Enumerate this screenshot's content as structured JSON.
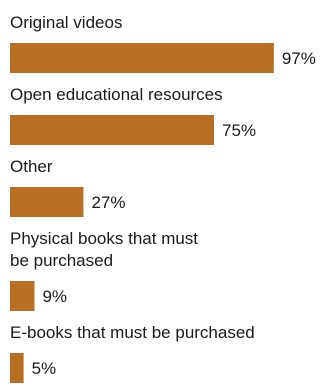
{
  "chart_data": {
    "type": "bar",
    "orientation": "horizontal",
    "categories": [
      [
        "Original videos"
      ],
      [
        "Open educational resources"
      ],
      [
        "Other"
      ],
      [
        "Physical books that must",
        "be purchased"
      ],
      [
        "E-books that must be purchased"
      ]
    ],
    "values": [
      97,
      75,
      27,
      9,
      5
    ],
    "value_labels": [
      "97%",
      "75%",
      "27%",
      "9%",
      "5%"
    ],
    "unit": "%",
    "xlim": [
      0,
      100
    ],
    "bar_color": "#b86e23",
    "text_color": "#1a1a1a",
    "grid": false,
    "legend": "none"
  }
}
